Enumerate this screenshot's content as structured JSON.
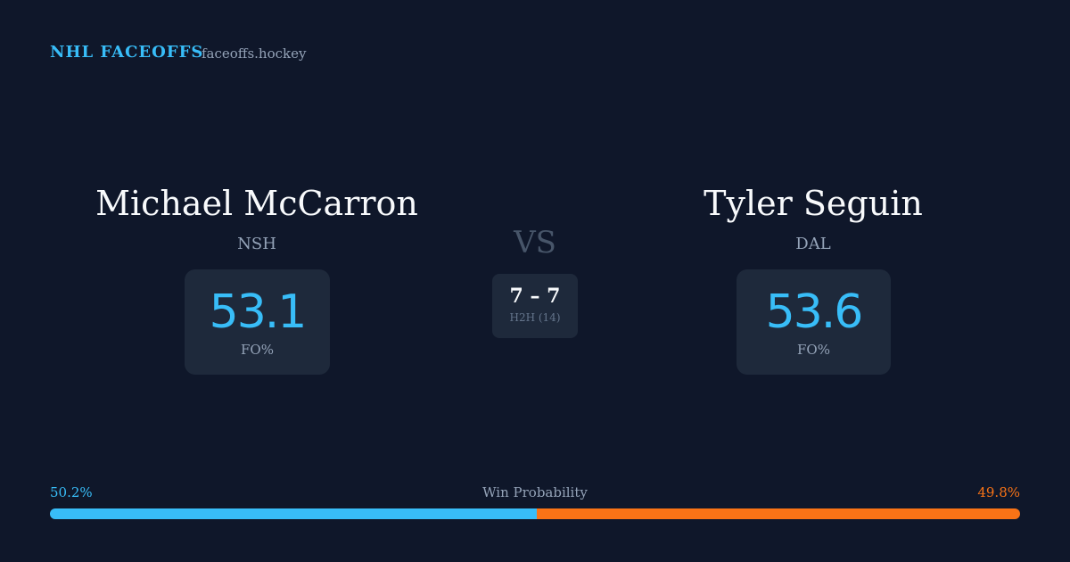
{
  "header": {
    "brand": "NHL FACEOFFS",
    "site": "faceoffs.hockey"
  },
  "players": [
    {
      "name": "Michael McCarron",
      "team": "NSH",
      "fo_pct": 53.1,
      "fo_label": "FO%"
    },
    {
      "name": "Tyler Seguin",
      "team": "DAL",
      "fo_pct": 53.6,
      "fo_label": "FO%"
    }
  ],
  "versus": "VS",
  "h2h": {
    "record": "7 – 7",
    "label": "H2H (14)"
  },
  "win_probability": {
    "title": "Win Probability",
    "home": {
      "value": 50.2,
      "label": "50.2%",
      "color": "#38bdf8"
    },
    "away": {
      "value": 49.8,
      "label": "49.8%",
      "color": "#f97316"
    }
  }
}
